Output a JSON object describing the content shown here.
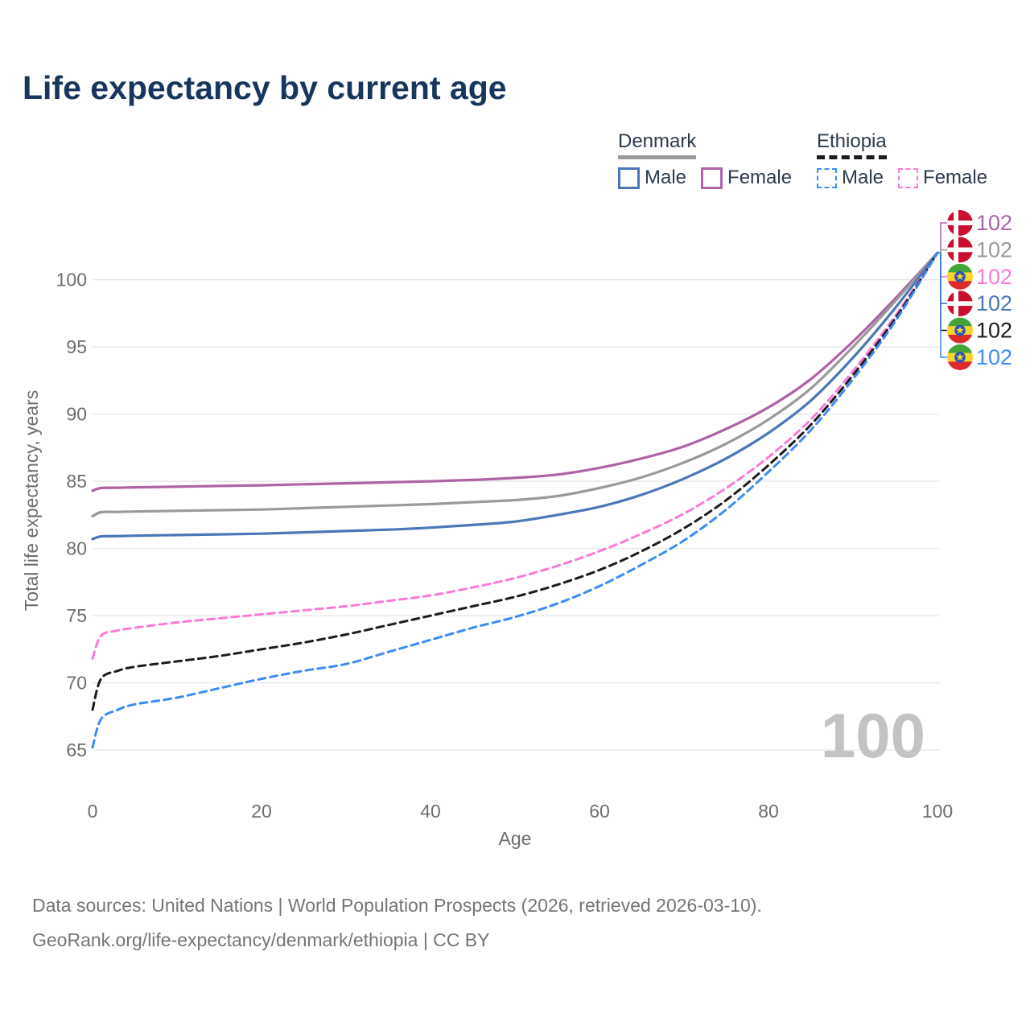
{
  "title": "Life expectancy by current age",
  "legend": {
    "groups": [
      {
        "name": "Denmark",
        "underline_series": "denmark_all",
        "items": [
          {
            "label": "Male",
            "series": "denmark_male"
          },
          {
            "label": "Female",
            "series": "denmark_female"
          }
        ]
      },
      {
        "name": "Ethiopia",
        "underline_series": "ethiopia_all",
        "items": [
          {
            "label": "Male",
            "series": "ethiopia_male"
          },
          {
            "label": "Female",
            "series": "ethiopia_female"
          }
        ]
      }
    ]
  },
  "chart_data": {
    "type": "line",
    "title": "Life expectancy by current age",
    "xlabel": "Age",
    "ylabel": "Total life expectancy, years",
    "xlim": [
      0,
      100
    ],
    "ylim": [
      63,
      104
    ],
    "xticks": [
      0,
      20,
      40,
      60,
      80,
      100
    ],
    "yticks": [
      65,
      70,
      75,
      80,
      85,
      90,
      95,
      100
    ],
    "grid": "horizontal-only",
    "watermark": "100",
    "ages": [
      0,
      1,
      3,
      5,
      10,
      15,
      20,
      25,
      30,
      35,
      40,
      45,
      50,
      55,
      60,
      65,
      70,
      75,
      80,
      85,
      90,
      95,
      100
    ],
    "series": [
      {
        "id": "denmark_female",
        "name": "Denmark Female",
        "country": "Denmark",
        "sex": "Female",
        "color": "#af62a6",
        "dashed": false,
        "end_value": "102",
        "values": [
          84.3,
          84.5,
          84.52,
          84.55,
          84.6,
          84.65,
          84.7,
          84.78,
          84.85,
          84.92,
          85.0,
          85.1,
          85.25,
          85.5,
          86.0,
          86.7,
          87.6,
          88.9,
          90.5,
          92.6,
          95.4,
          98.6,
          102
        ]
      },
      {
        "id": "denmark_all",
        "name": "Denmark Both sexes",
        "country": "Denmark",
        "sex": "Both",
        "color": "#9a9a9a",
        "dashed": false,
        "end_value": "102",
        "values": [
          82.4,
          82.7,
          82.72,
          82.75,
          82.8,
          82.85,
          82.9,
          83.0,
          83.1,
          83.2,
          83.3,
          83.45,
          83.6,
          83.9,
          84.5,
          85.3,
          86.4,
          87.8,
          89.6,
          91.9,
          95.0,
          98.4,
          102
        ]
      },
      {
        "id": "denmark_male",
        "name": "Denmark Male",
        "country": "Denmark",
        "sex": "Male",
        "color": "#4a77b8",
        "dashed": false,
        "end_value": "102",
        "values": [
          80.7,
          80.9,
          80.92,
          80.95,
          81.0,
          81.05,
          81.1,
          81.2,
          81.3,
          81.4,
          81.55,
          81.75,
          82.0,
          82.5,
          83.1,
          84.0,
          85.2,
          86.7,
          88.6,
          91.0,
          94.2,
          97.9,
          102
        ]
      },
      {
        "id": "ethiopia_female",
        "name": "Ethiopia Female",
        "country": "Ethiopia",
        "sex": "Female",
        "color": "#fb7ad7",
        "dashed": true,
        "end_value": "102",
        "values": [
          71.8,
          73.5,
          73.9,
          74.1,
          74.5,
          74.8,
          75.1,
          75.4,
          75.7,
          76.1,
          76.5,
          77.1,
          77.8,
          78.7,
          79.8,
          81.1,
          82.6,
          84.5,
          86.8,
          89.6,
          93.2,
          97.3,
          102
        ]
      },
      {
        "id": "ethiopia_all",
        "name": "Ethiopia Both sexes",
        "country": "Ethiopia",
        "sex": "Both",
        "color": "#1c1c1c",
        "dashed": true,
        "end_value": "102",
        "values": [
          68.0,
          70.3,
          70.9,
          71.2,
          71.6,
          72.0,
          72.5,
          73.0,
          73.6,
          74.3,
          75.0,
          75.7,
          76.4,
          77.3,
          78.4,
          79.8,
          81.5,
          83.6,
          86.2,
          89.2,
          92.9,
          97.1,
          102
        ]
      },
      {
        "id": "ethiopia_male",
        "name": "Ethiopia Male",
        "country": "Ethiopia",
        "sex": "Male",
        "color": "#3d8bf5",
        "dashed": true,
        "end_value": "102",
        "values": [
          65.2,
          67.3,
          68.0,
          68.4,
          68.9,
          69.6,
          70.3,
          70.9,
          71.4,
          72.3,
          73.2,
          74.1,
          74.9,
          75.9,
          77.2,
          78.8,
          80.6,
          82.9,
          85.7,
          88.8,
          92.6,
          96.9,
          102
        ]
      }
    ],
    "end_label_order": [
      "denmark_female",
      "denmark_all",
      "ethiopia_female",
      "denmark_male",
      "ethiopia_all",
      "ethiopia_male"
    ],
    "colors": {
      "title": "#17365d",
      "axis_text": "#6e6e6e",
      "gridline": "#e8e8e8",
      "watermark": "#c3c3c3",
      "legend_text": "#2d3b4e"
    }
  },
  "footer": {
    "line1": "Data sources: United Nations | World Population Prospects (2026, retrieved 2026-03-10).",
    "line2": "GeoRank.org/life-expectancy/denmark/ethiopia | CC BY"
  }
}
